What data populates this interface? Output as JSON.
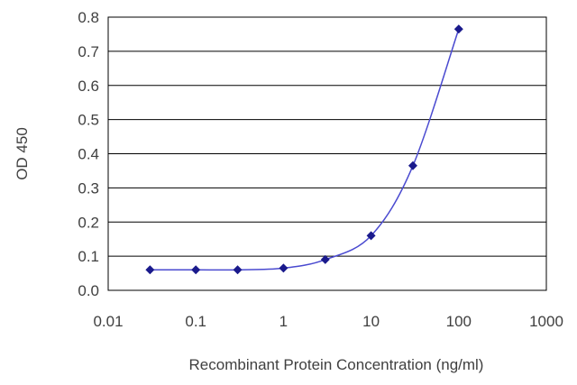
{
  "chart_data": {
    "type": "line",
    "xlabel": "Recombinant Protein Concentration (ng/ml)",
    "ylabel": "OD 450",
    "x_scale": "log",
    "xlim": [
      0.01,
      1000
    ],
    "ylim": [
      0.0,
      0.8
    ],
    "x_ticks": [
      "0.01",
      "0.1",
      "1",
      "10",
      "100",
      "1000"
    ],
    "y_ticks": [
      "0.0",
      "0.1",
      "0.2",
      "0.3",
      "0.4",
      "0.5",
      "0.6",
      "0.7",
      "0.8"
    ],
    "grid": "horizontal",
    "series": [
      {
        "color": "#1a1a8c",
        "x": [
          0.03,
          0.1,
          0.3,
          1,
          3,
          10,
          30,
          100
        ],
        "y": [
          0.06,
          0.06,
          0.06,
          0.065,
          0.09,
          0.16,
          0.365,
          0.765
        ]
      }
    ]
  }
}
